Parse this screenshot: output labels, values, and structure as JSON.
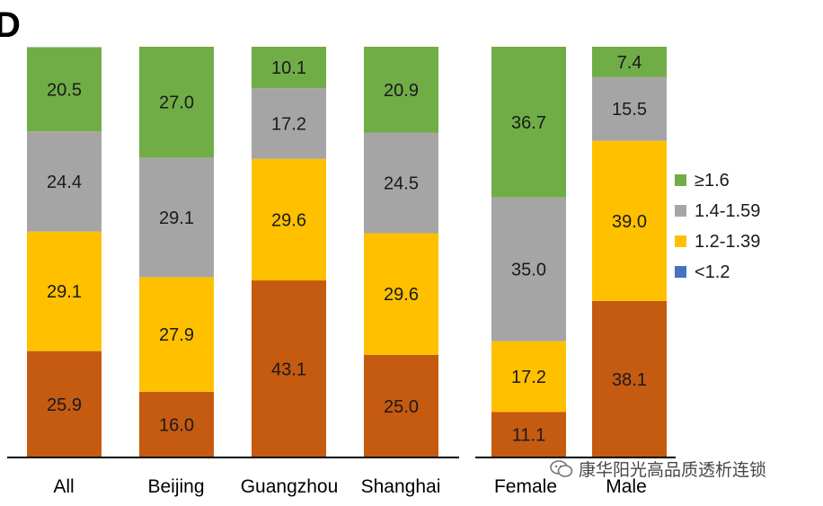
{
  "panel_label": "D",
  "watermark": "康华阳光高品质透析连锁",
  "colors": {
    "ge_1_6": "#70AD47",
    "r_1_4_1_59": "#A5A5A5",
    "r_1_2_1_39": "#FFC000",
    "lt_1_2": "#4472C4",
    "bottom_segment": "#C55A11"
  },
  "chart_data": {
    "type": "bar",
    "stacked": true,
    "ylim": [
      0,
      100
    ],
    "grid": false,
    "legend_position": "right",
    "categories": [
      "All",
      "Beijing",
      "Guangzhou",
      "Shanghai",
      "Female",
      "Male"
    ],
    "series": [
      {
        "values": [
          25.9,
          16.0,
          43.1,
          25.0,
          11.1,
          38.1
        ],
        "color": "#C55A11"
      },
      {
        "name": "1.2-1.39",
        "values": [
          29.1,
          27.9,
          29.6,
          29.6,
          17.2,
          39.0
        ],
        "color": "#FFC000"
      },
      {
        "name": "1.4-1.59",
        "values": [
          24.4,
          29.1,
          17.2,
          24.5,
          35.0,
          15.5
        ],
        "color": "#A5A5A5"
      },
      {
        "name": "≥1.6",
        "values": [
          20.5,
          27.0,
          10.1,
          20.9,
          36.7,
          7.4
        ],
        "color": "#70AD47"
      },
      {
        "name": "<1.2",
        "values": [
          0,
          0,
          0,
          0,
          0,
          0
        ],
        "color": "#4472C4"
      }
    ],
    "value_labels": [
      [
        "25.9",
        "16.0",
        "43.1",
        "25.0",
        "11.1",
        "38.1"
      ],
      [
        "29.1",
        "27.9",
        "29.6",
        "29.6",
        "17.2",
        "39.0"
      ],
      [
        "24.4",
        "29.1",
        "17.2",
        "24.5",
        "35.0",
        "15.5"
      ],
      [
        "20.5",
        "27.0",
        "10.1",
        "20.9",
        "36.7",
        "7.4"
      ]
    ],
    "legend": [
      {
        "label": "≥1.6",
        "color": "#70AD47"
      },
      {
        "label": "1.4-1.59",
        "color": "#A5A5A5"
      },
      {
        "label": "1.2-1.39",
        "color": "#FFC000"
      },
      {
        "label": "<1.2",
        "color": "#4472C4"
      }
    ]
  }
}
